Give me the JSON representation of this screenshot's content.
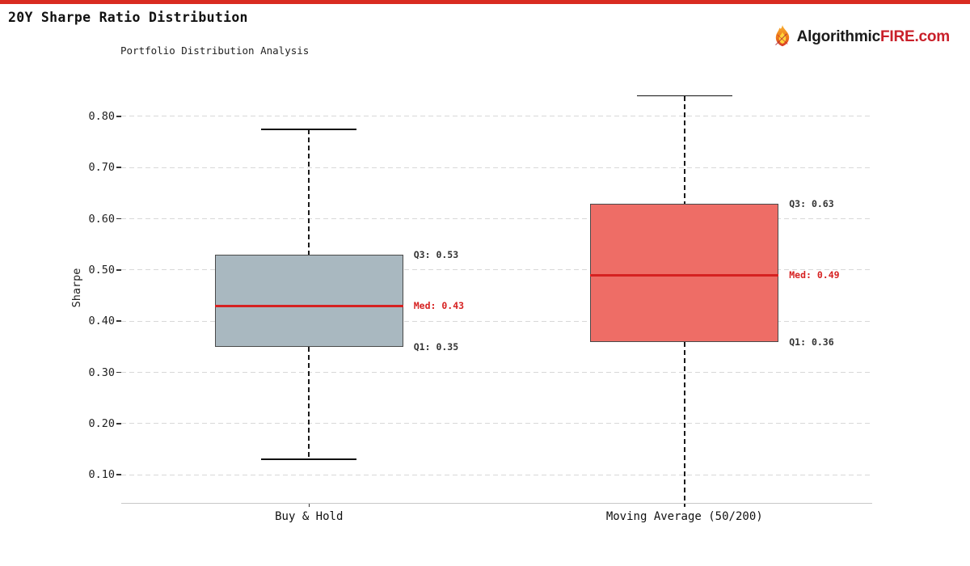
{
  "header": {
    "title": "20Y Sharpe Ratio Distribution",
    "subtitle": "Portfolio Distribution Analysis",
    "top_bar_color": "#d92b21"
  },
  "brand": {
    "icon": "flame-icon",
    "name_black": "Algorithmic",
    "name_red": "FIRE",
    "tld": ".com",
    "black_color": "#1a1a1a",
    "red_color": "#c9202a"
  },
  "chart_data": {
    "type": "box",
    "title": "20Y Sharpe Ratio Distribution",
    "ylabel": "Sharpe",
    "ylim": [
      0.045,
      0.893
    ],
    "yticks": [
      0.8,
      0.7,
      0.6,
      0.5,
      0.4,
      0.3,
      0.2,
      0.1
    ],
    "grid": "horizontal dashed",
    "categories": [
      "Buy & Hold",
      "Moving Average (50/200)"
    ],
    "series": [
      {
        "name": "Buy & Hold",
        "whisker_low": 0.13,
        "q1": 0.35,
        "median": 0.43,
        "q3": 0.53,
        "whisker_high": 0.775,
        "box_color": "#a9b8c0",
        "labels": {
          "q3": "Q3: 0.53",
          "median": "Med: 0.43",
          "q1": "Q1: 0.35"
        }
      },
      {
        "name": "Moving Average (50/200)",
        "whisker_low": null,
        "whisker_low_clipped": true,
        "q1": 0.36,
        "median": 0.49,
        "q3": 0.63,
        "whisker_high": 0.84,
        "box_color": "#ee6d66",
        "labels": {
          "q3": "Q3: 0.63",
          "median": "Med: 0.49",
          "q1": "Q1: 0.36"
        }
      }
    ],
    "median_color": "#d62121",
    "annotation_color": "#333333",
    "box_border_color": "#4a4a4a"
  }
}
